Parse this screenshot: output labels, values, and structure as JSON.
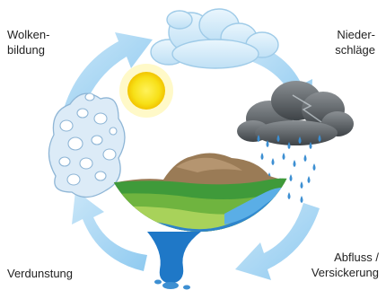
{
  "labels": {
    "cloud_formation": [
      "Wolken-",
      "bildung"
    ],
    "precipitation": [
      "Nieder-",
      "schläge"
    ],
    "evaporation": [
      "Verdunstung"
    ],
    "runoff": [
      "Abfluss /",
      "Versickerung"
    ]
  },
  "icons": {
    "sun": "sun-icon",
    "cloud": "cloud-icon",
    "rain_cloud": "rain-cloud-icon",
    "vapor": "vapor-cloud-icon",
    "earth": "earth-globe-icon",
    "cycle_arrows": "cycle-arrow-icon"
  },
  "colors": {
    "arrow": "#a9d6f3",
    "sun": "#f7e017",
    "cloud": "#d7ecfa",
    "rain_cloud": "#555a5e",
    "rain": "#3d8fd2",
    "water": "#1f78c7",
    "grass": "#8cc63f",
    "soil": "#9a7b56"
  }
}
